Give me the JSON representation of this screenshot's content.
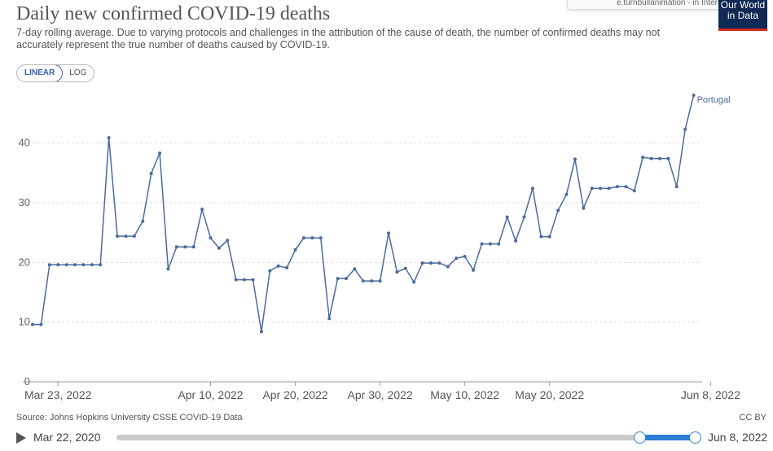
{
  "header": {
    "title": "Daily new confirmed COVID-19 deaths",
    "subtitle": "7-day rolling average. Due to varying protocols and challenges in the attribution of the cause of death, the number of confirmed deaths may not accurately represent the true number of deaths caused by COVID-19.",
    "tooltip_fragment": "e.turnbullanimation - in Internet Ar...",
    "logo_line1": "Our World",
    "logo_line2": "in Data"
  },
  "scale_toggle": {
    "linear_label": "LINEAR",
    "log_label": "LOG",
    "selected": "LINEAR"
  },
  "footer": {
    "source": "Source: Johns Hopkins University CSSE COVID-19 Data",
    "license": "CC BY"
  },
  "timeline": {
    "start_label": "Mar 22, 2020",
    "end_label": "Jun 8, 2022",
    "range_selected_fraction": [
      0.904,
      1.0
    ]
  },
  "colors": {
    "series": "#4c6a9c",
    "accent": "#2d7fd6",
    "grid": "#dddddd"
  },
  "chart_data": {
    "type": "line",
    "title": "Daily new confirmed COVID-19 deaths",
    "xlabel": "",
    "ylabel": "",
    "ylim": [
      0,
      48
    ],
    "yticks": [
      0,
      10,
      20,
      30,
      40
    ],
    "grid": "horizontal dashed",
    "x_start": "Mar 20, 2022",
    "x_end": "Jun 8, 2022",
    "xtick_labels": [
      "Mar 23, 2022",
      "Apr 10, 2022",
      "Apr 20, 2022",
      "Apr 30, 2022",
      "May 10, 2022",
      "May 20, 2022",
      "Jun 8, 2022"
    ],
    "xtick_dates": [
      "2022-03-23",
      "2022-04-10",
      "2022-04-20",
      "2022-04-30",
      "2022-05-10",
      "2022-05-20",
      "2022-06-08"
    ],
    "series": [
      {
        "name": "Portugal",
        "values": [
          9.6,
          9.6,
          19.6,
          19.6,
          19.6,
          19.6,
          19.6,
          19.6,
          19.6,
          40.9,
          24.4,
          24.4,
          24.4,
          26.9,
          34.9,
          38.3,
          18.9,
          22.6,
          22.6,
          22.6,
          28.9,
          24.1,
          22.4,
          23.7,
          17.1,
          17.1,
          17.1,
          8.4,
          18.6,
          19.4,
          19.1,
          22.1,
          24.1,
          24.1,
          24.1,
          10.6,
          17.3,
          17.3,
          18.9,
          16.9,
          16.9,
          16.9,
          24.9,
          18.4,
          19.0,
          16.7,
          19.9,
          19.9,
          19.9,
          19.3,
          20.7,
          21.0,
          18.7,
          23.1,
          23.1,
          23.1,
          27.6,
          23.6,
          27.6,
          32.4,
          24.3,
          24.3,
          28.7,
          31.4,
          37.3,
          29.1,
          32.4,
          32.4,
          32.4,
          32.7,
          32.7,
          32.0,
          37.6,
          37.4,
          37.4,
          37.4,
          32.7,
          42.3,
          48.0
        ]
      }
    ]
  }
}
